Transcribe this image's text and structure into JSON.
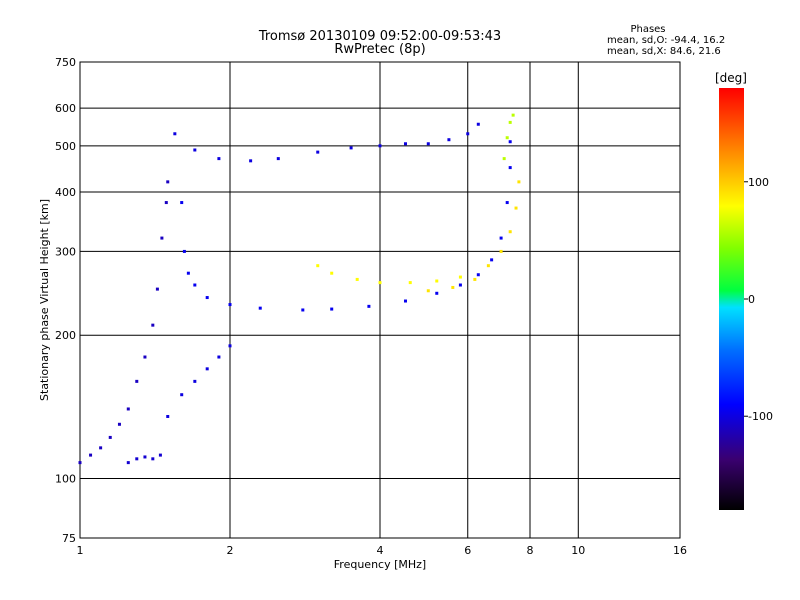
{
  "chart_data": {
    "type": "scatter",
    "title": "Tromsø 20130109 09:52:00-09:53:43",
    "subtitle": "RwPretec (8p)",
    "xlabel": "Frequency [MHz]",
    "ylabel": "Stationary phase Virtual Height [km]",
    "x_scale": "log",
    "y_scale": "log",
    "xlim": [
      1,
      16
    ],
    "ylim": [
      75,
      750
    ],
    "x_ticks": [
      1,
      2,
      4,
      6,
      8,
      10,
      16
    ],
    "y_ticks": [
      75,
      100,
      200,
      300,
      400,
      500,
      600,
      750
    ],
    "grid": true,
    "stats": {
      "heading": "Phases",
      "line_o": "mean, sd,O: -94.4, 16.2",
      "line_x": "mean, sd,X:  84.6, 21.6"
    },
    "colorbar": {
      "label": "[deg]",
      "range": [
        -180,
        180
      ],
      "ticks": [
        100,
        0,
        -100
      ]
    },
    "traces": [
      {
        "name": "",
        "phase": -110,
        "points": [
          [
            1.0,
            108
          ],
          [
            1.05,
            112
          ],
          [
            1.1,
            116
          ],
          [
            1.15,
            122
          ],
          [
            1.2,
            130
          ],
          [
            1.25,
            140
          ],
          [
            1.3,
            160
          ],
          [
            1.35,
            180
          ],
          [
            1.4,
            210
          ],
          [
            1.43,
            250
          ],
          [
            1.46,
            320
          ],
          [
            1.49,
            380
          ],
          [
            1.5,
            420
          ]
        ]
      },
      {
        "name": "",
        "phase": -105,
        "points": [
          [
            1.25,
            108
          ],
          [
            1.3,
            110
          ],
          [
            1.35,
            111
          ],
          [
            1.4,
            110
          ],
          [
            1.45,
            112
          ]
        ]
      },
      {
        "name": "",
        "phase": -100,
        "points": [
          [
            1.55,
            530
          ],
          [
            1.7,
            490
          ],
          [
            1.9,
            470
          ],
          [
            2.2,
            465
          ],
          [
            2.5,
            470
          ],
          [
            3.0,
            485
          ],
          [
            3.5,
            495
          ],
          [
            4.0,
            500
          ],
          [
            4.5,
            505
          ],
          [
            5.0,
            505
          ],
          [
            5.5,
            515
          ],
          [
            6.0,
            530
          ],
          [
            6.3,
            555
          ]
        ]
      },
      {
        "name": "",
        "phase": -95,
        "points": [
          [
            1.6,
            380
          ],
          [
            1.62,
            300
          ],
          [
            1.65,
            270
          ],
          [
            1.7,
            255
          ],
          [
            1.8,
            240
          ],
          [
            2.0,
            232
          ],
          [
            2.3,
            228
          ],
          [
            2.8,
            226
          ],
          [
            3.2,
            227
          ],
          [
            3.8,
            230
          ],
          [
            4.5,
            236
          ],
          [
            5.2,
            245
          ],
          [
            5.8,
            255
          ],
          [
            6.3,
            268
          ],
          [
            6.7,
            288
          ],
          [
            7.0,
            320
          ],
          [
            7.2,
            380
          ],
          [
            7.3,
            450
          ],
          [
            7.3,
            510
          ]
        ]
      },
      {
        "name": "",
        "phase": -100,
        "points": [
          [
            1.5,
            135
          ],
          [
            1.6,
            150
          ],
          [
            1.7,
            160
          ],
          [
            1.8,
            170
          ],
          [
            1.9,
            180
          ],
          [
            2.0,
            190
          ]
        ]
      },
      {
        "name": "",
        "phase": 80,
        "points": [
          [
            3.0,
            280
          ],
          [
            3.2,
            270
          ],
          [
            3.6,
            262
          ],
          [
            4.0,
            258
          ],
          [
            4.6,
            258
          ],
          [
            5.2,
            260
          ],
          [
            5.8,
            265
          ]
        ]
      },
      {
        "name": "",
        "phase": 90,
        "points": [
          [
            5.0,
            248
          ],
          [
            5.6,
            252
          ],
          [
            6.2,
            262
          ],
          [
            6.6,
            280
          ],
          [
            7.0,
            300
          ],
          [
            7.3,
            330
          ],
          [
            7.5,
            370
          ],
          [
            7.6,
            420
          ]
        ]
      },
      {
        "name": "",
        "phase": 60,
        "points": [
          [
            7.1,
            470
          ],
          [
            7.2,
            520
          ],
          [
            7.3,
            560
          ],
          [
            7.4,
            580
          ]
        ]
      }
    ]
  }
}
